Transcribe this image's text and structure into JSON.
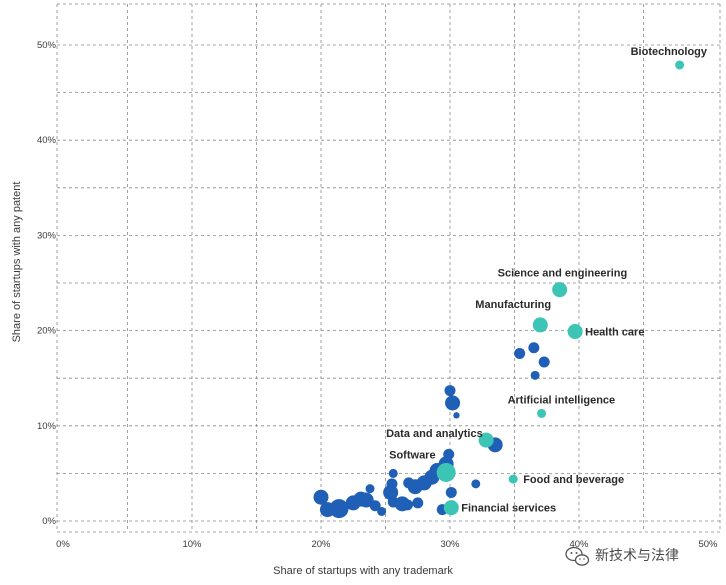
{
  "chart_data": {
    "type": "scatter",
    "xlabel": "Share of startups with any trademark",
    "ylabel": "Share of startups with any patent",
    "x_ticks": [
      "0%",
      "10%",
      "20%",
      "30%",
      "40%",
      "50%"
    ],
    "y_ticks": [
      "0%",
      "10%",
      "20%",
      "30%",
      "40%",
      "50%"
    ],
    "xlim": [
      0,
      50
    ],
    "ylim": [
      -1.5,
      54
    ],
    "grid": true,
    "colors": {
      "highlight": "#3cc4b4",
      "other": "#1f5fb5"
    },
    "highlighted": [
      {
        "label": "Biotechnology",
        "x": 47.8,
        "y": 47.9,
        "size": "s"
      },
      {
        "label": "Science and engineering",
        "x": 38.5,
        "y": 24.3,
        "size": "l"
      },
      {
        "label": "Manufacturing",
        "x": 37.0,
        "y": 20.6,
        "size": "l"
      },
      {
        "label": "Health care",
        "x": 39.7,
        "y": 19.9,
        "size": "l"
      },
      {
        "label": "Artificial intelligence",
        "x": 37.1,
        "y": 11.3,
        "size": "s"
      },
      {
        "label": "Data and analytics",
        "x": 32.8,
        "y": 8.5,
        "size": "l"
      },
      {
        "label": "Software",
        "x": 29.7,
        "y": 5.1,
        "size": "xl"
      },
      {
        "label": "Food and beverage",
        "x": 34.9,
        "y": 4.4,
        "size": "s"
      },
      {
        "label": "Financial services",
        "x": 30.1,
        "y": 1.4,
        "size": "l"
      }
    ],
    "others": [
      {
        "x": 30.0,
        "y": 13.7,
        "size": "m"
      },
      {
        "x": 30.2,
        "y": 12.4,
        "size": "l"
      },
      {
        "x": 30.5,
        "y": 11.1,
        "size": "xs"
      },
      {
        "x": 36.5,
        "y": 18.2,
        "size": "m"
      },
      {
        "x": 35.4,
        "y": 17.6,
        "size": "m"
      },
      {
        "x": 37.3,
        "y": 16.7,
        "size": "m"
      },
      {
        "x": 36.6,
        "y": 15.3,
        "size": "s"
      },
      {
        "x": 33.5,
        "y": 8.0,
        "size": "l"
      },
      {
        "x": 29.9,
        "y": 7.0,
        "size": "m"
      },
      {
        "x": 29.7,
        "y": 6.0,
        "size": "l"
      },
      {
        "x": 32.0,
        "y": 3.9,
        "size": "s"
      },
      {
        "x": 30.1,
        "y": 3.0,
        "size": "m"
      },
      {
        "x": 29.0,
        "y": 5.3,
        "size": "l"
      },
      {
        "x": 28.6,
        "y": 4.6,
        "size": "l"
      },
      {
        "x": 28.0,
        "y": 4.0,
        "size": "l"
      },
      {
        "x": 27.3,
        "y": 3.6,
        "size": "l"
      },
      {
        "x": 26.8,
        "y": 4.0,
        "size": "m"
      },
      {
        "x": 25.6,
        "y": 5.0,
        "size": "s"
      },
      {
        "x": 25.5,
        "y": 3.9,
        "size": "m"
      },
      {
        "x": 25.4,
        "y": 3.0,
        "size": "l"
      },
      {
        "x": 25.6,
        "y": 2.0,
        "size": "m"
      },
      {
        "x": 26.3,
        "y": 1.8,
        "size": "l"
      },
      {
        "x": 26.7,
        "y": 1.7,
        "size": "m"
      },
      {
        "x": 27.5,
        "y": 1.9,
        "size": "m"
      },
      {
        "x": 24.7,
        "y": 1.0,
        "size": "s"
      },
      {
        "x": 24.2,
        "y": 1.6,
        "size": "m"
      },
      {
        "x": 23.8,
        "y": 3.4,
        "size": "s"
      },
      {
        "x": 23.5,
        "y": 2.2,
        "size": "l"
      },
      {
        "x": 23.1,
        "y": 2.3,
        "size": "l"
      },
      {
        "x": 22.5,
        "y": 1.9,
        "size": "l"
      },
      {
        "x": 21.4,
        "y": 1.3,
        "size": "xl"
      },
      {
        "x": 20.5,
        "y": 1.2,
        "size": "l"
      },
      {
        "x": 20.0,
        "y": 2.5,
        "size": "l"
      },
      {
        "x": 29.4,
        "y": 1.2,
        "size": "m"
      }
    ]
  },
  "watermark": {
    "icon": "wechat-icon",
    "text": "新技术与法律"
  }
}
